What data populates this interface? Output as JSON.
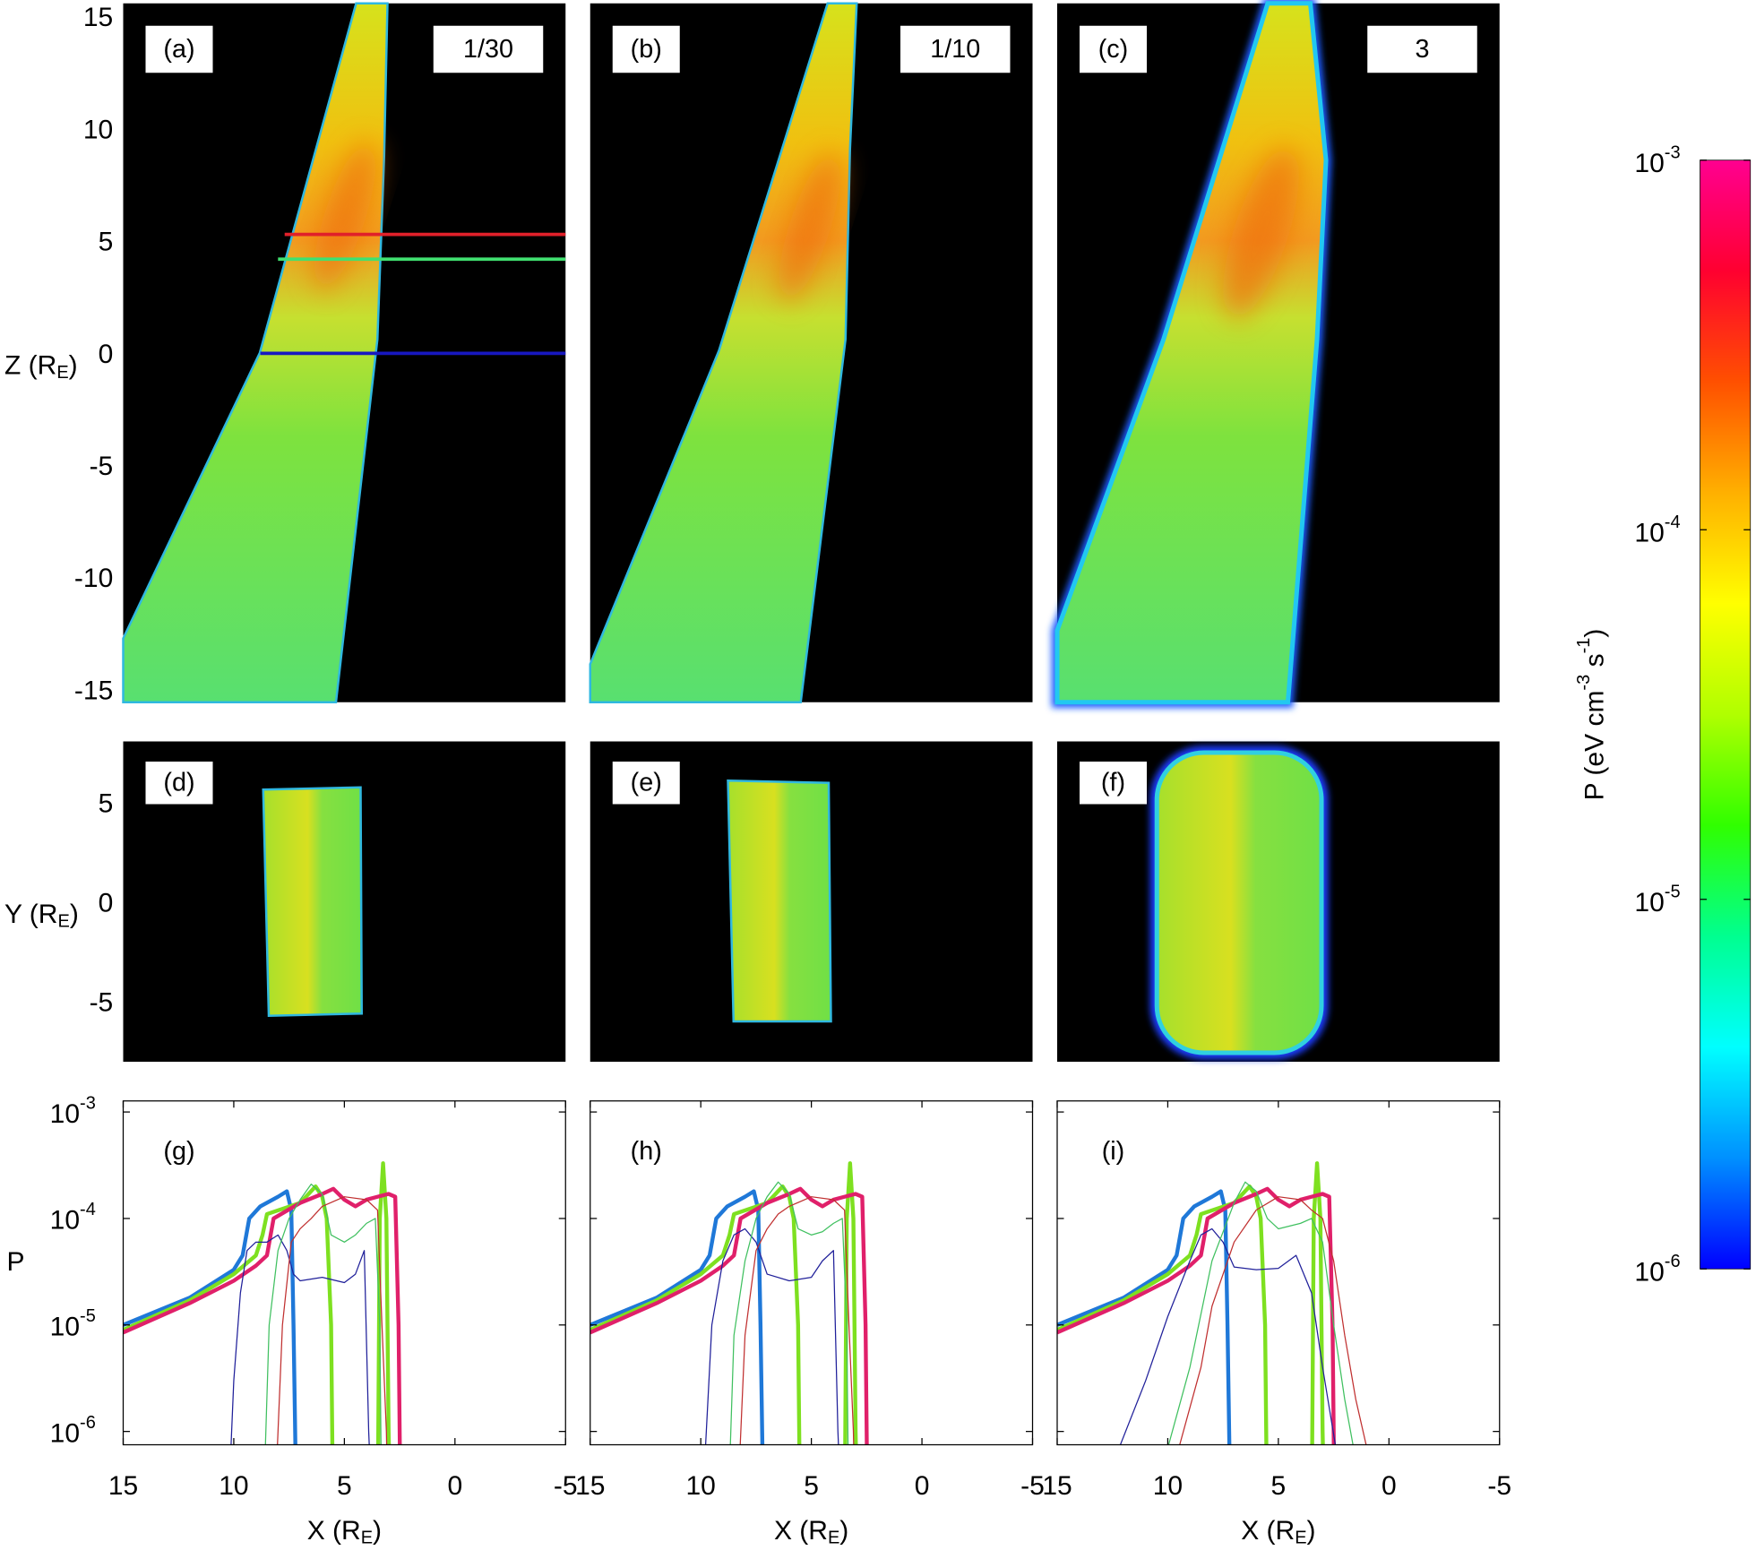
{
  "chart_data": [
    {
      "type": "heatmap",
      "label": "(a)",
      "tag": "1/30",
      "xlim": [
        15,
        -5
      ],
      "ylim": [
        -15.45,
        15.7
      ],
      "yticks": [
        -15,
        -10,
        -5,
        0,
        5,
        10,
        15
      ],
      "ylabel": [
        {
          "text": "Z (R"
        },
        {
          "text": "E",
          "sub": true
        },
        {
          "text": ")"
        }
      ],
      "hlines": [
        {
          "y": 5.4,
          "x": 7.7,
          "color": "#e0202a"
        },
        {
          "y": 4.3,
          "x": 8.0,
          "color": "#40e070"
        },
        {
          "y": 0.1,
          "x": 8.8,
          "color": "#1818c0"
        }
      ]
    },
    {
      "type": "heatmap",
      "label": "(b)",
      "tag": "1/10",
      "xlim": [
        15,
        -5
      ],
      "ylim": [
        -15.45,
        15.7
      ]
    },
    {
      "type": "heatmap",
      "label": "(c)",
      "tag": "3",
      "xlim": [
        15,
        -5
      ],
      "ylim": [
        -15.45,
        15.7
      ]
    },
    {
      "type": "heatmap",
      "label": "(d)",
      "xlim": [
        15,
        -5
      ],
      "ylim": [
        -7.9,
        8.2
      ],
      "yticks": [
        -5,
        0,
        5
      ],
      "ylabel": [
        {
          "text": "Y (R"
        },
        {
          "text": "E",
          "sub": true
        },
        {
          "text": ")"
        }
      ]
    },
    {
      "type": "heatmap",
      "label": "(e)",
      "xlim": [
        15,
        -5
      ],
      "ylim": [
        -7.9,
        8.2
      ]
    },
    {
      "type": "heatmap",
      "label": "(f)",
      "xlim": [
        15,
        -5
      ],
      "ylim": [
        -7.9,
        8.2
      ]
    },
    {
      "type": "line",
      "label": "(g)",
      "log": true,
      "xlim": [
        15,
        -5
      ],
      "ylim": [
        7.5e-07,
        0.00127
      ],
      "xticks": [
        15,
        10,
        5,
        0,
        -5
      ],
      "yticks": [
        {
          "value": 1e-06,
          "label": "10",
          "exp": "-6"
        },
        {
          "value": 1e-05,
          "label": "10",
          "exp": "-5"
        },
        {
          "value": 0.0001,
          "label": "10",
          "exp": "-4"
        },
        {
          "value": 0.001,
          "label": "10",
          "exp": "-3"
        }
      ],
      "ylabel": [
        {
          "text": "P"
        }
      ],
      "xlabel": [
        {
          "text": "X (R"
        },
        {
          "text": "E",
          "sub": true
        },
        {
          "text": ")"
        }
      ],
      "series": [
        {
          "color": "#1f78d8",
          "width": 3.5,
          "x": [
            15,
            12,
            10,
            9.6,
            9.3,
            8.8,
            8,
            7.6,
            7.4,
            7.3,
            7.15
          ],
          "values": [
            1e-05,
            1.8e-05,
            3.3e-05,
            4.5e-05,
            0.0001,
            0.00013,
            0.00016,
            0.00018,
            0.00012,
            1e-05,
            1e-07
          ]
        },
        {
          "color": "#7ee020",
          "width": 3.5,
          "x": [
            15,
            12,
            10,
            9,
            8.7,
            8.5,
            7,
            6.3,
            6,
            5.8,
            5.6,
            5.5,
            3.6,
            3.5,
            3.4,
            3.25,
            3.1,
            3.0,
            2.9
          ],
          "values": [
            9e-06,
            1.7e-05,
            3e-05,
            4.5e-05,
            7e-05,
            0.00011,
            0.00014,
            0.0002,
            0.00016,
            0.0001,
            1e-05,
            1e-07,
            null,
            1e-07,
            0.0001,
            0.00033,
            0.0001,
            1e-06,
            1e-07
          ]
        },
        {
          "color": "#e0206a",
          "width": 3.5,
          "x": [
            15,
            12,
            10,
            9,
            8.5,
            8.2,
            7,
            6,
            5.5,
            5,
            4.5,
            4,
            3.5,
            3,
            2.7,
            2.55,
            2.45
          ],
          "values": [
            8.5e-06,
            1.6e-05,
            2.6e-05,
            3.6e-05,
            4.5e-05,
            0.0001,
            0.00014,
            0.00017,
            0.00019,
            0.00015,
            0.00013,
            0.00015,
            0.00016,
            0.00017,
            0.00016,
            1e-05,
            1e-07
          ]
        },
        {
          "color": "#20209a",
          "width": 1,
          "x": [
            10.3,
            10,
            9.7,
            9.4,
            9,
            8.5,
            8,
            7.6,
            7.3,
            7,
            6,
            5,
            4.5,
            4.1,
            3.9,
            3.7
          ],
          "values": [
            1e-07,
            3e-06,
            2e-05,
            5e-05,
            6e-05,
            6e-05,
            7e-05,
            5e-05,
            3e-05,
            2.6e-05,
            2.8e-05,
            2.5e-05,
            3e-05,
            5e-05,
            1e-06,
            1e-07
          ]
        },
        {
          "color": "#40c060",
          "width": 1,
          "x": [
            8.7,
            8.4,
            8,
            7.5,
            7,
            6.5,
            6,
            5.6,
            5,
            4.5,
            4,
            3.6,
            3.4,
            3.3
          ],
          "values": [
            1e-07,
            1e-05,
            5e-05,
            0.0001,
            0.00015,
            0.00021,
            0.00017,
            7e-05,
            6e-05,
            7e-05,
            9e-05,
            0.0001,
            1e-05,
            1e-07
          ]
        },
        {
          "color": "#c03030",
          "width": 1,
          "x": [
            8.2,
            7.8,
            7.4,
            7,
            6.5,
            6,
            5,
            4,
            3.5,
            3.3,
            3.1,
            3.0
          ],
          "values": [
            1e-07,
            1e-05,
            6e-05,
            8e-05,
            0.0001,
            0.00013,
            0.00016,
            0.00015,
            0.00012,
            1e-05,
            1e-06,
            1e-07
          ]
        }
      ]
    },
    {
      "type": "line",
      "label": "(h)",
      "log": true,
      "xlim": [
        15,
        -5
      ],
      "ylim": [
        7.5e-07,
        0.00127
      ],
      "xticks": [
        15,
        10,
        5,
        0,
        -5
      ],
      "xlabel": [
        {
          "text": "X (R"
        },
        {
          "text": "E",
          "sub": true
        },
        {
          "text": ")"
        }
      ],
      "series": [
        {
          "color": "#1f78d8",
          "width": 3.5,
          "x": [
            15,
            12,
            10,
            9.6,
            9.3,
            8.8,
            8,
            7.6,
            7.4,
            7.3,
            7.15
          ],
          "values": [
            1e-05,
            1.8e-05,
            3.3e-05,
            4.5e-05,
            0.0001,
            0.00013,
            0.00016,
            0.00018,
            0.00012,
            1e-05,
            1e-07
          ]
        },
        {
          "color": "#7ee020",
          "width": 3.5,
          "x": [
            15,
            12,
            10,
            9,
            8.7,
            8.5,
            7,
            6.3,
            6,
            5.8,
            5.6,
            5.5,
            3.6,
            3.5,
            3.4,
            3.25,
            3.1,
            3.0,
            2.9
          ],
          "values": [
            9e-06,
            1.7e-05,
            3e-05,
            4.5e-05,
            7e-05,
            0.00011,
            0.00014,
            0.0002,
            0.00016,
            0.0001,
            1e-05,
            1e-07,
            null,
            1e-07,
            0.0001,
            0.00033,
            0.0001,
            1e-06,
            1e-07
          ]
        },
        {
          "color": "#e0206a",
          "width": 3.5,
          "x": [
            15,
            12,
            10,
            9,
            8.5,
            8.2,
            7,
            6,
            5.5,
            5,
            4.5,
            4,
            3.5,
            3,
            2.7,
            2.55,
            2.45
          ],
          "values": [
            8.5e-06,
            1.6e-05,
            2.6e-05,
            3.6e-05,
            4.5e-05,
            0.0001,
            0.00014,
            0.00017,
            0.00019,
            0.00015,
            0.00013,
            0.00015,
            0.00016,
            0.00017,
            0.00016,
            1e-05,
            1e-07
          ]
        },
        {
          "color": "#20209a",
          "width": 1,
          "x": [
            10,
            9.5,
            9,
            8.5,
            8,
            7.5,
            7,
            6,
            5,
            4.5,
            4,
            3.8,
            3.6
          ],
          "values": [
            1e-07,
            1e-05,
            4e-05,
            7e-05,
            8e-05,
            6e-05,
            3e-05,
            2.6e-05,
            2.8e-05,
            4e-05,
            5e-05,
            1e-06,
            1e-07
          ]
        },
        {
          "color": "#40c060",
          "width": 1,
          "x": [
            8.8,
            8.5,
            8,
            7.5,
            7,
            6.5,
            6,
            5.6,
            5,
            4.5,
            4,
            3.6,
            3.4,
            3.3
          ],
          "values": [
            1e-07,
            8e-06,
            4e-05,
            0.0001,
            0.00016,
            0.00022,
            0.00017,
            8e-05,
            7e-05,
            7.5e-05,
            9e-05,
            0.0001,
            1e-05,
            1e-07
          ]
        },
        {
          "color": "#c03030",
          "width": 1,
          "x": [
            8.4,
            8,
            7.5,
            7,
            6.5,
            6,
            5,
            4,
            3.5,
            3.3,
            3.1,
            3.0
          ],
          "values": [
            1e-07,
            8e-06,
            5e-05,
            8e-05,
            0.00011,
            0.00013,
            0.00016,
            0.00015,
            0.00012,
            1e-05,
            1e-06,
            1e-07
          ]
        }
      ]
    },
    {
      "type": "line",
      "label": "(i)",
      "log": true,
      "xlim": [
        15,
        -5
      ],
      "ylim": [
        7.5e-07,
        0.00127
      ],
      "xticks": [
        15,
        10,
        5,
        0,
        -5
      ],
      "xlabel": [
        {
          "text": "X (R"
        },
        {
          "text": "E",
          "sub": true
        },
        {
          "text": ")"
        }
      ],
      "series": [
        {
          "color": "#1f78d8",
          "width": 3.5,
          "x": [
            15,
            12,
            10,
            9.6,
            9.3,
            8.8,
            8,
            7.6,
            7.4,
            7.3,
            7.15
          ],
          "values": [
            1e-05,
            1.8e-05,
            3.3e-05,
            4.5e-05,
            0.0001,
            0.00013,
            0.00016,
            0.00018,
            0.00012,
            1e-05,
            1e-07
          ]
        },
        {
          "color": "#7ee020",
          "width": 3.5,
          "x": [
            15,
            12,
            10,
            9,
            8.7,
            8.5,
            7,
            6.3,
            6,
            5.8,
            5.6,
            5.5,
            3.6,
            3.5,
            3.4,
            3.25,
            3.1,
            3.0,
            2.9
          ],
          "values": [
            9e-06,
            1.7e-05,
            3e-05,
            4.5e-05,
            7e-05,
            0.00011,
            0.00014,
            0.0002,
            0.00016,
            0.0001,
            1e-05,
            1e-07,
            null,
            1e-07,
            0.0001,
            0.00033,
            0.0001,
            1e-06,
            1e-07
          ]
        },
        {
          "color": "#e0206a",
          "width": 3.5,
          "x": [
            15,
            12,
            10,
            9,
            8.5,
            8.2,
            7,
            6,
            5.5,
            5,
            4.5,
            4,
            3.5,
            3,
            2.7,
            2.55,
            2.45
          ],
          "values": [
            8.5e-06,
            1.6e-05,
            2.6e-05,
            3.6e-05,
            4.5e-05,
            0.0001,
            0.00014,
            0.00017,
            0.00019,
            0.00015,
            0.00013,
            0.00015,
            0.00016,
            0.00017,
            0.00016,
            1e-05,
            1e-07
          ]
        },
        {
          "color": "#20209a",
          "width": 1,
          "x": [
            12.2,
            11,
            10,
            9,
            8.5,
            8,
            7.5,
            7,
            6,
            5,
            4.2,
            3.5,
            3,
            2.4
          ],
          "values": [
            7e-07,
            3e-06,
            1.2e-05,
            4e-05,
            7e-05,
            8e-05,
            6e-05,
            3.5e-05,
            3.3e-05,
            3.4e-05,
            4.5e-05,
            2e-05,
            4e-06,
            7e-07
          ]
        },
        {
          "color": "#40c060",
          "width": 1,
          "x": [
            10,
            9,
            8,
            7,
            6.5,
            6,
            5.5,
            5,
            4,
            3.5,
            3,
            2.5,
            2,
            1.6
          ],
          "values": [
            7e-07,
            4e-06,
            4e-05,
            0.00014,
            0.00022,
            0.00018,
            0.0001,
            8e-05,
            9e-05,
            0.0001,
            6e-05,
            1e-05,
            2e-06,
            7e-07
          ]
        },
        {
          "color": "#c03030",
          "width": 1,
          "x": [
            9.5,
            8.5,
            8,
            7,
            6,
            5,
            4,
            3.5,
            3,
            2.5,
            2,
            1.5,
            1
          ],
          "values": [
            7e-07,
            4e-06,
            1.5e-05,
            6e-05,
            0.00012,
            0.00016,
            0.00015,
            0.00012,
            0.0001,
            4e-05,
            8e-06,
            2e-06,
            7e-07
          ]
        }
      ]
    },
    {
      "type": "colorbar",
      "log": true,
      "ylim": [
        1e-06,
        0.001
      ],
      "yticks": [
        {
          "value": 1e-06,
          "label": "10",
          "exp": "-6"
        },
        {
          "value": 1e-05,
          "label": "10",
          "exp": "-5"
        },
        {
          "value": 0.0001,
          "label": "10",
          "exp": "-4"
        },
        {
          "value": 0.001,
          "label": "10",
          "exp": "-3"
        }
      ],
      "ylabel": [
        {
          "text": "P (eV cm"
        },
        {
          "text": "-3",
          "sup": true
        },
        {
          "text": " s"
        },
        {
          "text": "-1",
          "sup": true
        },
        {
          "text": ")"
        }
      ],
      "colors": [
        "#0000ff",
        "#0090ff",
        "#00ffff",
        "#00ff90",
        "#30ff00",
        "#b0ff00",
        "#ffff00",
        "#ffb000",
        "#ff5000",
        "#ff0030",
        "#ff0090"
      ]
    }
  ]
}
